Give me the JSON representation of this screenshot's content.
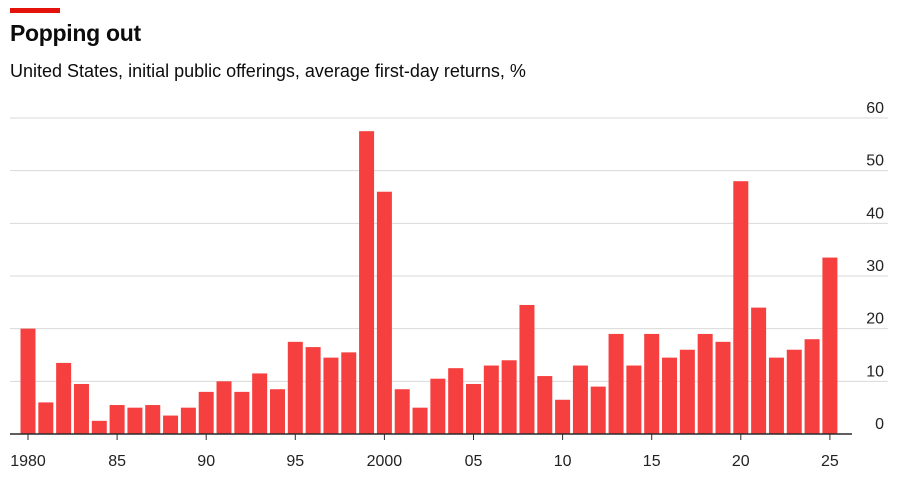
{
  "header": {
    "title": "Popping out",
    "subtitle": "United States, initial public offerings, average first-day returns, %"
  },
  "colors": {
    "bar": "#f5403f",
    "brand_rule": "#e3120b",
    "grid": "#d9d9d9",
    "axis": "#2a2a2a"
  },
  "chart_data": {
    "type": "bar",
    "title": "Popping out",
    "subtitle": "United States, initial public offerings, average first-day returns, %",
    "xlabel": "",
    "ylabel": "",
    "ylim": [
      0,
      60
    ],
    "y_ticks": [
      0,
      10,
      20,
      30,
      40,
      50,
      60
    ],
    "y_axis_side": "right",
    "grid": true,
    "x_tick_years": [
      1980,
      1985,
      1990,
      1995,
      2000,
      2005,
      2010,
      2015,
      2020,
      2025
    ],
    "x_tick_labels": [
      "1980",
      "85",
      "90",
      "95",
      "2000",
      "05",
      "10",
      "15",
      "20",
      "25"
    ],
    "categories": [
      1980,
      1981,
      1982,
      1983,
      1984,
      1985,
      1986,
      1987,
      1988,
      1989,
      1990,
      1991,
      1992,
      1993,
      1994,
      1995,
      1996,
      1997,
      1998,
      1999,
      2000,
      2001,
      2002,
      2003,
      2004,
      2005,
      2006,
      2007,
      2008,
      2009,
      2010,
      2011,
      2012,
      2013,
      2014,
      2015,
      2016,
      2017,
      2018,
      2019,
      2020,
      2021,
      2022,
      2023,
      2024,
      2025
    ],
    "values": [
      20,
      6,
      13.5,
      9.5,
      2.5,
      5.5,
      5,
      5.5,
      3.5,
      5,
      8,
      10,
      8,
      11.5,
      8.5,
      17.5,
      16.5,
      14.5,
      15.5,
      57.5,
      46,
      8.5,
      5,
      10.5,
      12.5,
      9.5,
      13,
      14,
      24.5,
      11,
      6.5,
      13,
      9,
      19,
      13,
      19,
      14.5,
      16,
      19,
      17.5,
      48,
      24,
      14.5,
      16,
      18,
      33.5
    ]
  }
}
